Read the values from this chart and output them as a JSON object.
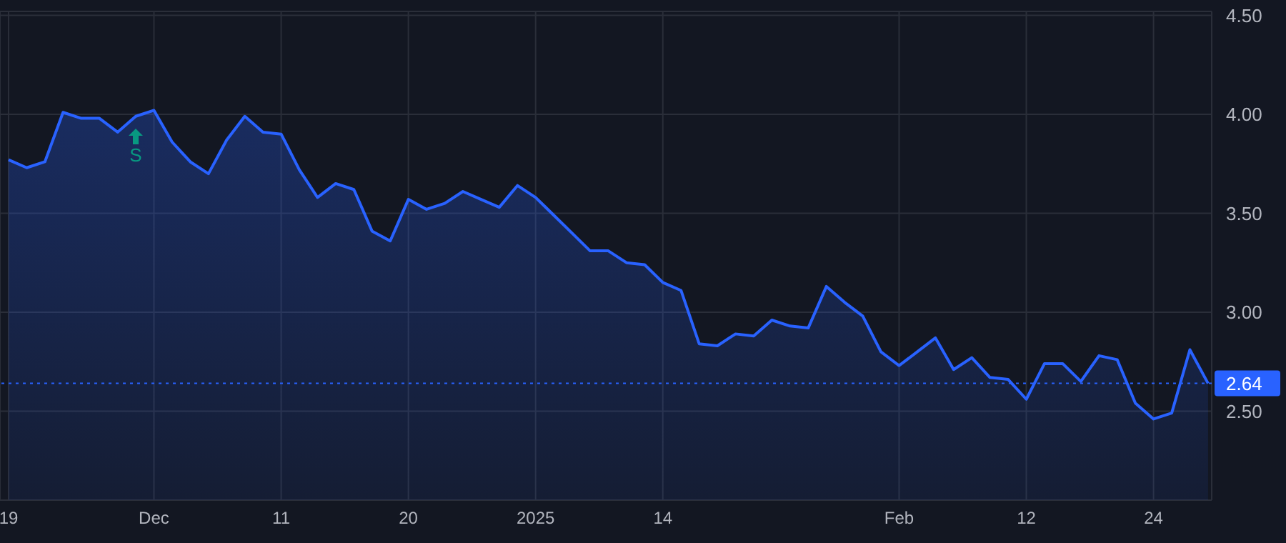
{
  "chart_data": {
    "type": "area",
    "categories": [
      "19",
      null,
      null,
      null,
      null,
      null,
      null,
      null,
      "Dec",
      null,
      null,
      null,
      null,
      null,
      null,
      "11",
      null,
      null,
      null,
      null,
      null,
      null,
      "20",
      null,
      null,
      null,
      null,
      null,
      null,
      "2025",
      null,
      null,
      null,
      null,
      null,
      null,
      "14",
      null,
      null,
      null,
      null,
      null,
      null,
      null,
      null,
      null,
      null,
      null,
      null,
      "Feb",
      null,
      null,
      null,
      null,
      null,
      null,
      "12",
      null,
      null,
      null,
      null,
      null,
      null,
      "24",
      null,
      null,
      null
    ],
    "series": [
      {
        "color": "#2962ff",
        "values": [
          3.77,
          3.73,
          3.76,
          4.01,
          3.98,
          3.98,
          3.91,
          3.99,
          4.02,
          3.86,
          3.76,
          3.7,
          3.87,
          3.99,
          3.91,
          3.9,
          3.72,
          3.58,
          3.65,
          3.62,
          3.41,
          3.36,
          3.57,
          3.52,
          3.55,
          3.61,
          3.57,
          3.53,
          3.64,
          3.58,
          3.49,
          3.4,
          3.31,
          3.31,
          3.25,
          3.24,
          3.15,
          3.11,
          2.84,
          2.83,
          2.89,
          2.88,
          2.96,
          2.93,
          2.92,
          3.13,
          3.05,
          2.98,
          2.8,
          2.73,
          2.8,
          2.87,
          2.71,
          2.77,
          2.67,
          2.66,
          2.56,
          2.74,
          2.74,
          2.65,
          2.78,
          2.76,
          2.54,
          2.46,
          2.49,
          2.81,
          2.64
        ]
      }
    ],
    "ylim": [
      2.05,
      4.52
    ],
    "yticks": [
      {
        "value": 2.5,
        "label": "2.50"
      },
      {
        "value": 3,
        "label": "3.00"
      },
      {
        "value": 3.5,
        "label": "3.50"
      },
      {
        "value": 4,
        "label": "4.00"
      },
      {
        "value": 4.5,
        "label": "4.50"
      }
    ],
    "grid": true,
    "ref_lines": [
      {
        "axis": "y",
        "value": 2.64,
        "label": "2.64",
        "color": "#2962ff",
        "line_style": "dotted"
      }
    ],
    "annotations": [
      "S"
    ]
  }
}
